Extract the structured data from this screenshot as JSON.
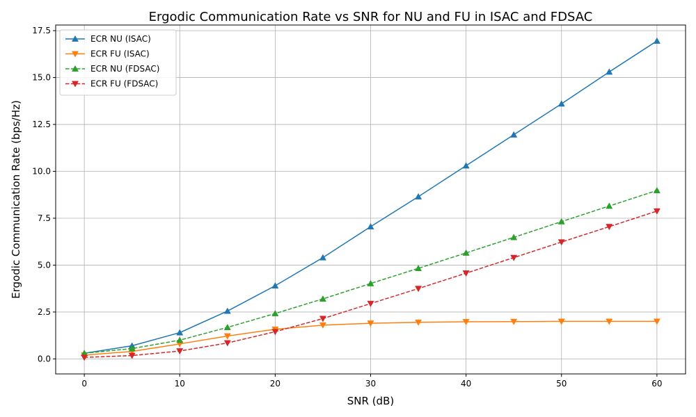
{
  "chart_data": {
    "type": "line",
    "title": "Ergodic Communication Rate vs SNR for NU and FU in ISAC and FDSAC",
    "xlabel": "SNR (dB)",
    "ylabel": "Ergodic Communication Rate (bps/Hz)",
    "xlim": [
      -3,
      63
    ],
    "ylim": [
      -0.8,
      17.8
    ],
    "xticks": [
      0,
      10,
      20,
      30,
      40,
      50,
      60
    ],
    "yticks": [
      0.0,
      2.5,
      5.0,
      7.5,
      10.0,
      12.5,
      15.0,
      17.5
    ],
    "xtick_labels": [
      "0",
      "10",
      "20",
      "30",
      "40",
      "50",
      "60"
    ],
    "ytick_labels": [
      "0.0",
      "2.5",
      "5.0",
      "7.5",
      "10.0",
      "12.5",
      "15.0",
      "17.5"
    ],
    "grid": true,
    "legend_position": "top-left",
    "x": [
      0,
      5,
      10,
      15,
      20,
      25,
      30,
      35,
      40,
      45,
      50,
      55,
      60
    ],
    "series": [
      {
        "name": "ECR NU (ISAC)",
        "color": "#1f77b4",
        "line_style": "solid",
        "marker": "triangle-up",
        "values": [
          0.3,
          0.7,
          1.4,
          2.55,
          3.9,
          5.4,
          7.05,
          8.65,
          10.3,
          11.95,
          13.6,
          15.3,
          16.95
        ]
      },
      {
        "name": "ECR FU (ISAC)",
        "color": "#ff7f0e",
        "line_style": "solid",
        "marker": "triangle-down",
        "values": [
          0.2,
          0.4,
          0.8,
          1.22,
          1.58,
          1.8,
          1.9,
          1.95,
          1.98,
          1.99,
          2.0,
          2.0,
          2.0
        ]
      },
      {
        "name": "ECR NU (FDSAC)",
        "color": "#2ca02c",
        "line_style": "dashed",
        "marker": "triangle-up",
        "values": [
          0.3,
          0.55,
          1.0,
          1.68,
          2.42,
          3.2,
          4.02,
          4.83,
          5.65,
          6.48,
          7.32,
          8.15,
          8.98
        ]
      },
      {
        "name": "ECR FU (FDSAC)",
        "color": "#d62728",
        "line_style": "dashed",
        "marker": "triangle-down",
        "values": [
          0.08,
          0.18,
          0.42,
          0.85,
          1.45,
          2.15,
          2.95,
          3.75,
          4.57,
          5.4,
          6.23,
          7.05,
          7.88
        ]
      }
    ]
  }
}
